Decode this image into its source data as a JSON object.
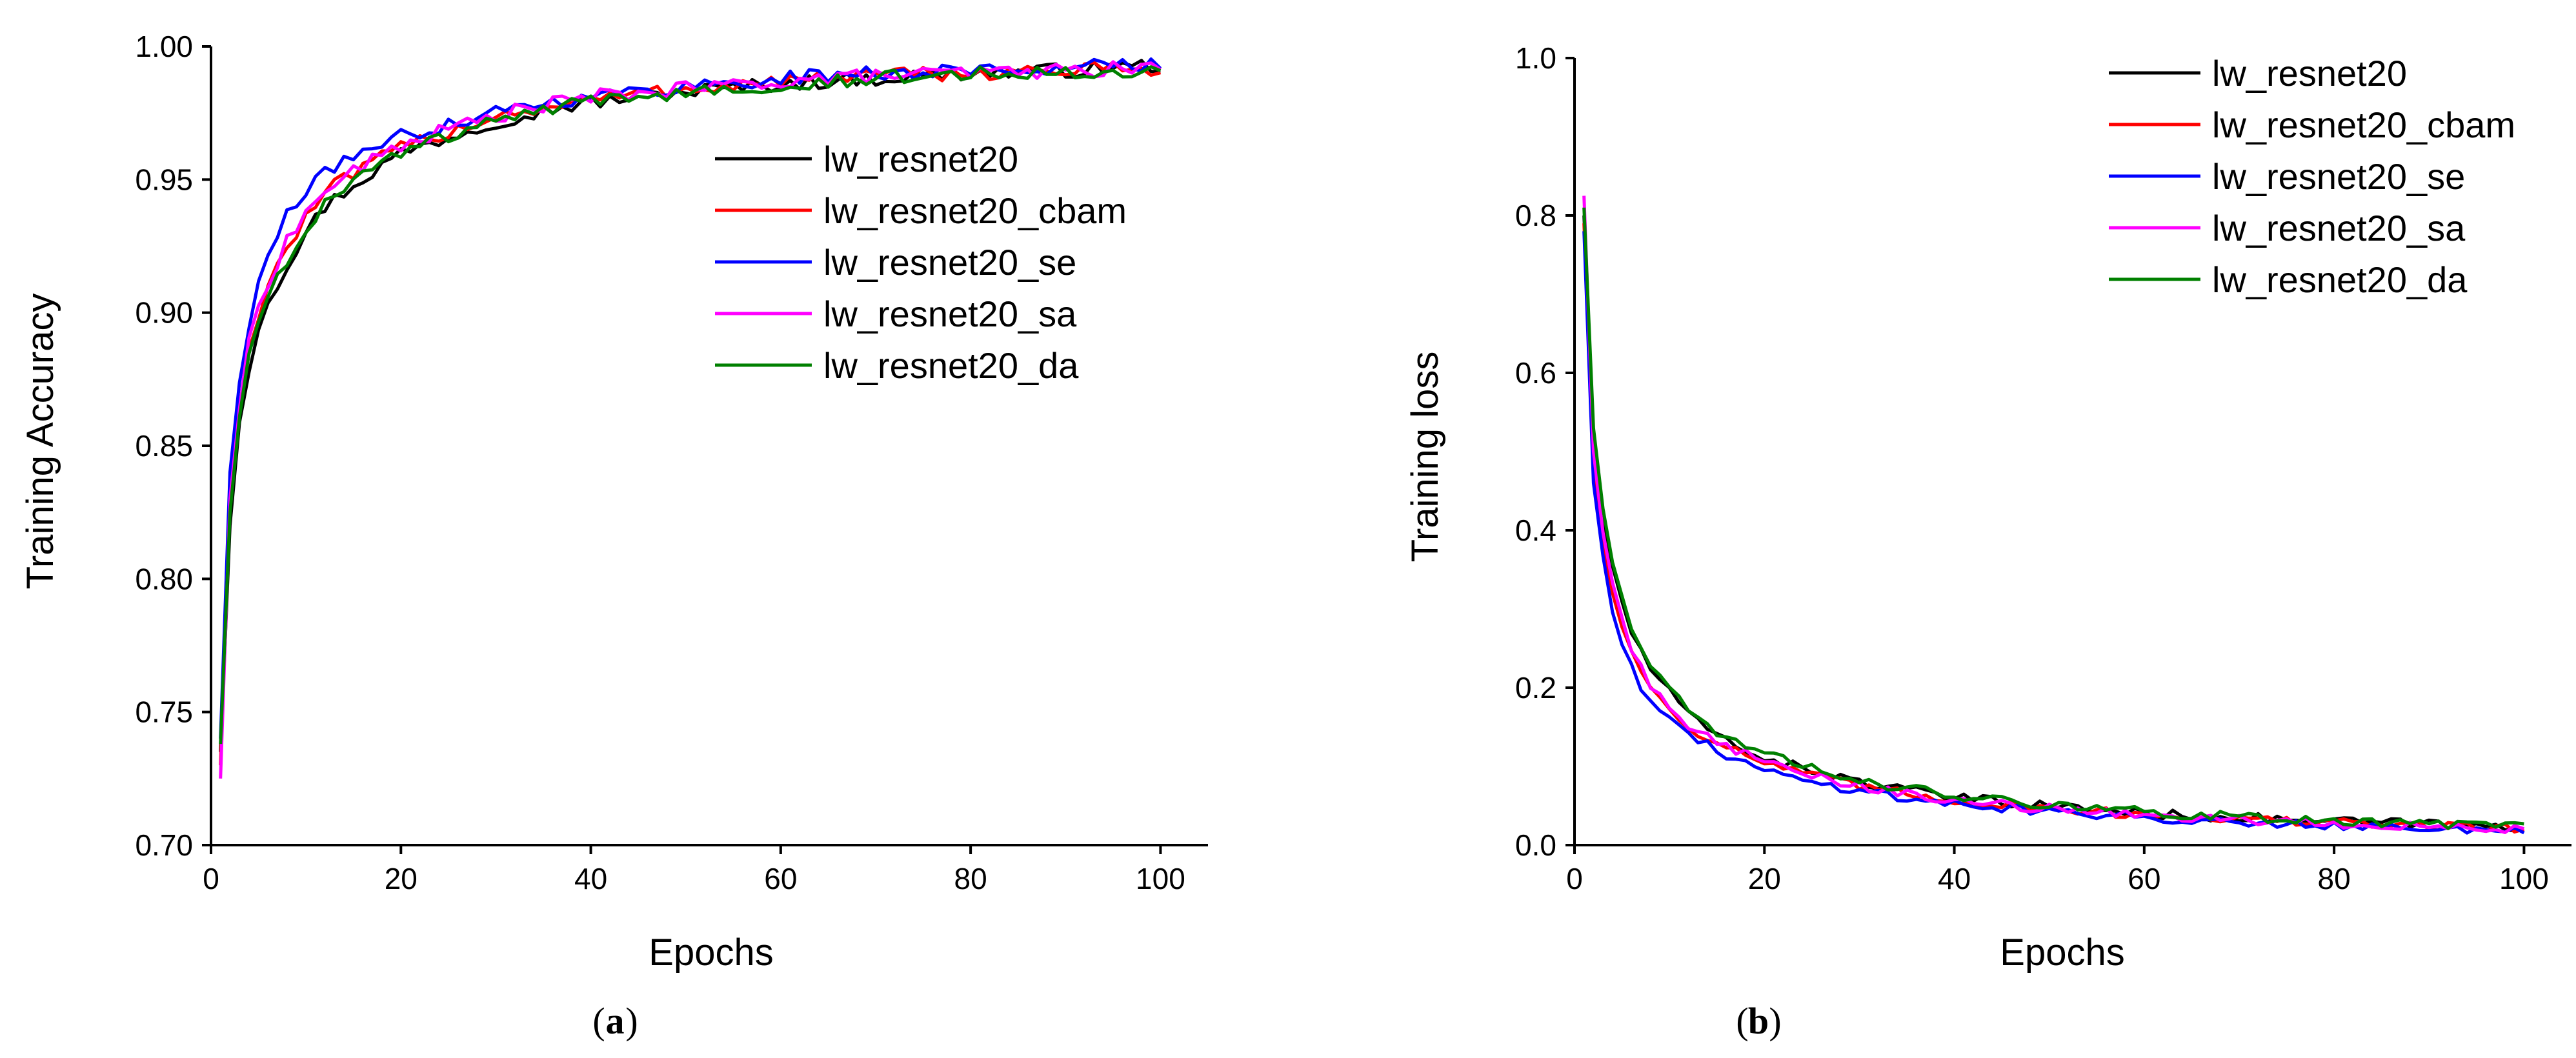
{
  "chart_data": [
    {
      "type": "line",
      "panel_label": "a",
      "xlabel": "Epochs",
      "ylabel": "Training Accuracy",
      "xlim": [
        0,
        105
      ],
      "ylim": [
        0.7,
        1.0
      ],
      "xticks": [
        0,
        20,
        40,
        60,
        80,
        100
      ],
      "yticks": [
        0.7,
        0.75,
        0.8,
        0.85,
        0.9,
        0.95,
        1.0
      ],
      "ytick_labels": [
        "0.70",
        "0.75",
        "0.80",
        "0.85",
        "0.90",
        "0.95",
        "1.00"
      ],
      "legend_position": "center-right",
      "grid": false,
      "series": [
        {
          "name": "lw_resnet20",
          "color": "#000000",
          "anchors": [
            [
              1,
              0.735
            ],
            [
              2,
              0.82
            ],
            [
              3,
              0.86
            ],
            [
              4,
              0.88
            ],
            [
              5,
              0.895
            ],
            [
              6,
              0.905
            ],
            [
              8,
              0.918
            ],
            [
              10,
              0.93
            ],
            [
              12,
              0.94
            ],
            [
              15,
              0.948
            ],
            [
              20,
              0.96
            ],
            [
              25,
              0.966
            ],
            [
              30,
              0.972
            ],
            [
              35,
              0.976
            ],
            [
              40,
              0.979
            ],
            [
              50,
              0.983
            ],
            [
              60,
              0.986
            ],
            [
              70,
              0.988
            ],
            [
              80,
              0.99
            ],
            [
              90,
              0.991
            ],
            [
              100,
              0.993
            ]
          ]
        },
        {
          "name": "lw_resnet20_cbam",
          "color": "#ff0000",
          "anchors": [
            [
              1,
              0.73
            ],
            [
              2,
              0.83
            ],
            [
              3,
              0.865
            ],
            [
              4,
              0.885
            ],
            [
              5,
              0.9
            ],
            [
              6,
              0.91
            ],
            [
              8,
              0.925
            ],
            [
              10,
              0.935
            ],
            [
              12,
              0.945
            ],
            [
              15,
              0.952
            ],
            [
              20,
              0.962
            ],
            [
              25,
              0.968
            ],
            [
              30,
              0.974
            ],
            [
              35,
              0.977
            ],
            [
              40,
              0.98
            ],
            [
              50,
              0.984
            ],
            [
              60,
              0.987
            ],
            [
              70,
              0.989
            ],
            [
              80,
              0.99
            ],
            [
              90,
              0.991
            ],
            [
              100,
              0.992
            ]
          ]
        },
        {
          "name": "lw_resnet20_se",
          "color": "#0000ff",
          "anchors": [
            [
              1,
              0.74
            ],
            [
              2,
              0.84
            ],
            [
              3,
              0.875
            ],
            [
              4,
              0.895
            ],
            [
              5,
              0.91
            ],
            [
              6,
              0.92
            ],
            [
              8,
              0.938
            ],
            [
              10,
              0.945
            ],
            [
              12,
              0.952
            ],
            [
              15,
              0.96
            ],
            [
              20,
              0.966
            ],
            [
              25,
              0.971
            ],
            [
              30,
              0.976
            ],
            [
              35,
              0.979
            ],
            [
              40,
              0.981
            ],
            [
              50,
              0.985
            ],
            [
              60,
              0.988
            ],
            [
              70,
              0.99
            ],
            [
              80,
              0.991
            ],
            [
              90,
              0.992
            ],
            [
              100,
              0.993
            ]
          ]
        },
        {
          "name": "lw_resnet20_sa",
          "color": "#ff00ff",
          "anchors": [
            [
              1,
              0.725
            ],
            [
              2,
              0.83
            ],
            [
              3,
              0.865
            ],
            [
              4,
              0.888
            ],
            [
              5,
              0.902
            ],
            [
              6,
              0.912
            ],
            [
              8,
              0.927
            ],
            [
              10,
              0.937
            ],
            [
              12,
              0.946
            ],
            [
              15,
              0.953
            ],
            [
              20,
              0.963
            ],
            [
              25,
              0.969
            ],
            [
              30,
              0.974
            ],
            [
              35,
              0.978
            ],
            [
              40,
              0.981
            ],
            [
              50,
              0.984
            ],
            [
              60,
              0.987
            ],
            [
              70,
              0.989
            ],
            [
              80,
              0.99
            ],
            [
              90,
              0.991
            ],
            [
              100,
              0.992
            ]
          ]
        },
        {
          "name": "lw_resnet20_da",
          "color": "#008000",
          "anchors": [
            [
              1,
              0.738
            ],
            [
              2,
              0.825
            ],
            [
              3,
              0.862
            ],
            [
              4,
              0.884
            ],
            [
              5,
              0.897
            ],
            [
              6,
              0.907
            ],
            [
              8,
              0.92
            ],
            [
              10,
              0.932
            ],
            [
              12,
              0.941
            ],
            [
              15,
              0.949
            ],
            [
              20,
              0.96
            ],
            [
              25,
              0.966
            ],
            [
              30,
              0.972
            ],
            [
              35,
              0.976
            ],
            [
              40,
              0.979
            ],
            [
              50,
              0.983
            ],
            [
              60,
              0.986
            ],
            [
              70,
              0.988
            ],
            [
              80,
              0.99
            ],
            [
              90,
              0.991
            ],
            [
              100,
              0.991
            ]
          ]
        }
      ]
    },
    {
      "type": "line",
      "panel_label": "b",
      "xlabel": "Epochs",
      "ylabel": "Training loss",
      "xlim": [
        0,
        105
      ],
      "ylim": [
        0.0,
        1.0
      ],
      "xticks": [
        0,
        20,
        40,
        60,
        80,
        100
      ],
      "yticks": [
        0.0,
        0.2,
        0.4,
        0.6,
        0.8,
        1.0
      ],
      "ytick_labels": [
        "0.0",
        "0.2",
        "0.4",
        "0.6",
        "0.8",
        "1.0"
      ],
      "legend_position": "top-right",
      "grid": false,
      "series": [
        {
          "name": "lw_resnet20",
          "color": "#000000",
          "anchors": [
            [
              1,
              0.8
            ],
            [
              2,
              0.52
            ],
            [
              3,
              0.42
            ],
            [
              4,
              0.35
            ],
            [
              5,
              0.31
            ],
            [
              6,
              0.27
            ],
            [
              8,
              0.225
            ],
            [
              10,
              0.195
            ],
            [
              12,
              0.165
            ],
            [
              15,
              0.14
            ],
            [
              20,
              0.11
            ],
            [
              25,
              0.095
            ],
            [
              30,
              0.08
            ],
            [
              35,
              0.07
            ],
            [
              40,
              0.06
            ],
            [
              50,
              0.05
            ],
            [
              60,
              0.04
            ],
            [
              70,
              0.035
            ],
            [
              80,
              0.03
            ],
            [
              90,
              0.027
            ],
            [
              100,
              0.022
            ]
          ]
        },
        {
          "name": "lw_resnet20_cbam",
          "color": "#ff0000",
          "anchors": [
            [
              1,
              0.79
            ],
            [
              2,
              0.49
            ],
            [
              3,
              0.39
            ],
            [
              4,
              0.32
            ],
            [
              5,
              0.28
            ],
            [
              6,
              0.245
            ],
            [
              8,
              0.2
            ],
            [
              10,
              0.175
            ],
            [
              12,
              0.15
            ],
            [
              15,
              0.13
            ],
            [
              20,
              0.105
            ],
            [
              25,
              0.088
            ],
            [
              30,
              0.075
            ],
            [
              35,
              0.065
            ],
            [
              40,
              0.057
            ],
            [
              50,
              0.047
            ],
            [
              60,
              0.038
            ],
            [
              70,
              0.033
            ],
            [
              80,
              0.028
            ],
            [
              90,
              0.025
            ],
            [
              100,
              0.022
            ]
          ]
        },
        {
          "name": "lw_resnet20_se",
          "color": "#0000ff",
          "anchors": [
            [
              1,
              0.78
            ],
            [
              2,
              0.46
            ],
            [
              3,
              0.37
            ],
            [
              4,
              0.3
            ],
            [
              5,
              0.26
            ],
            [
              6,
              0.225
            ],
            [
              8,
              0.18
            ],
            [
              10,
              0.16
            ],
            [
              12,
              0.14
            ],
            [
              15,
              0.12
            ],
            [
              20,
              0.095
            ],
            [
              25,
              0.08
            ],
            [
              30,
              0.07
            ],
            [
              35,
              0.06
            ],
            [
              40,
              0.052
            ],
            [
              50,
              0.043
            ],
            [
              60,
              0.035
            ],
            [
              70,
              0.03
            ],
            [
              80,
              0.026
            ],
            [
              90,
              0.022
            ],
            [
              100,
              0.016
            ]
          ]
        },
        {
          "name": "lw_resnet20_sa",
          "color": "#ff00ff",
          "anchors": [
            [
              1,
              0.825
            ],
            [
              2,
              0.5
            ],
            [
              3,
              0.4
            ],
            [
              4,
              0.33
            ],
            [
              5,
              0.285
            ],
            [
              6,
              0.25
            ],
            [
              8,
              0.205
            ],
            [
              10,
              0.178
            ],
            [
              12,
              0.152
            ],
            [
              15,
              0.132
            ],
            [
              20,
              0.105
            ],
            [
              25,
              0.088
            ],
            [
              30,
              0.075
            ],
            [
              35,
              0.065
            ],
            [
              40,
              0.056
            ],
            [
              50,
              0.046
            ],
            [
              60,
              0.038
            ],
            [
              70,
              0.032
            ],
            [
              80,
              0.027
            ],
            [
              90,
              0.024
            ],
            [
              100,
              0.02
            ]
          ]
        },
        {
          "name": "lw_resnet20_da",
          "color": "#008000",
          "anchors": [
            [
              1,
              0.81
            ],
            [
              2,
              0.53
            ],
            [
              3,
              0.43
            ],
            [
              4,
              0.36
            ],
            [
              5,
              0.315
            ],
            [
              6,
              0.275
            ],
            [
              8,
              0.23
            ],
            [
              10,
              0.2
            ],
            [
              12,
              0.17
            ],
            [
              15,
              0.145
            ],
            [
              20,
              0.115
            ],
            [
              25,
              0.097
            ],
            [
              30,
              0.082
            ],
            [
              35,
              0.072
            ],
            [
              40,
              0.062
            ],
            [
              50,
              0.052
            ],
            [
              60,
              0.042
            ],
            [
              70,
              0.036
            ],
            [
              80,
              0.031
            ],
            [
              90,
              0.027
            ],
            [
              100,
              0.025
            ]
          ]
        }
      ]
    }
  ]
}
